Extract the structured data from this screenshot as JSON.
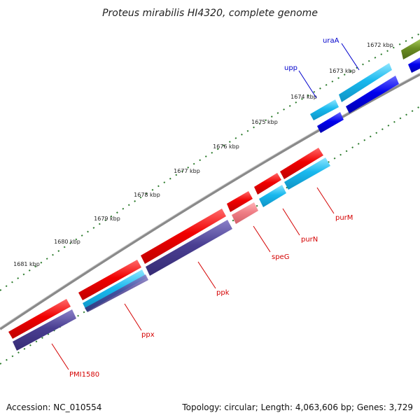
{
  "title": "Proteus mirabilis HI4320, complete genome",
  "kbp_ticks": [
    "1672 kbp",
    "1673 kbp",
    "1674 kbp",
    "1675 kbp",
    "1676 kbp",
    "1677 kbp",
    "1678 kbp",
    "1679 kbp",
    "1680 kbp",
    "1681 kbp"
  ],
  "gene_labels": {
    "uraA": "uraA",
    "upp": "upp",
    "purM": "purM",
    "purN": "purN",
    "speG": "speG",
    "ppk": "ppk",
    "ppx": "ppx",
    "PMI1580": "PMI1580"
  },
  "footer": {
    "accession": "Accession: NC_010554",
    "summary": "Topology: circular; Length: 4,063,606 bp; Genes: 3,729"
  },
  "colors": {
    "cds_red": "#f00000",
    "cds_light_blue": "#18b8ee",
    "cds_navy": "#4a3f92",
    "cds_blue": "#0000ee",
    "cds_pink": "#f07f86",
    "cds_olive": "#6b8e23",
    "backbone": "#8a8a8a",
    "tick_green": "#2a7a2a"
  }
}
